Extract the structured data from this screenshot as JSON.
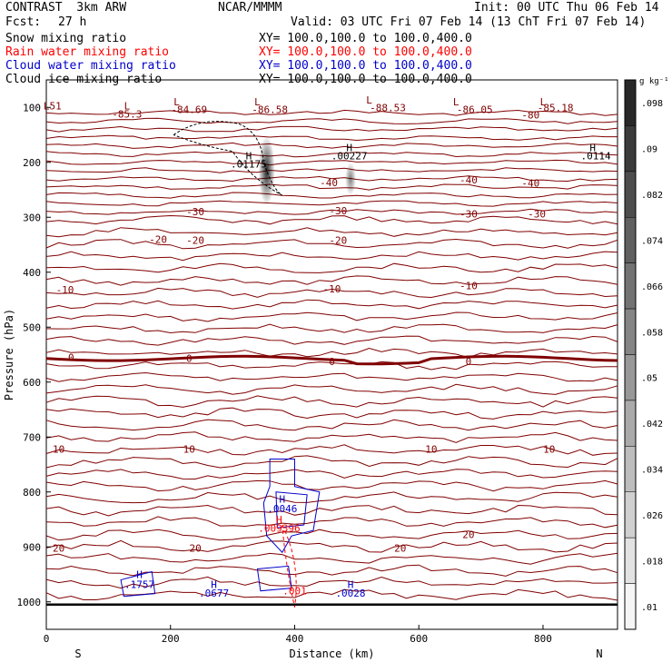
{
  "header": {
    "model": "CONTRAST  3km ARW",
    "center": "NCAR/MMMM",
    "init": "Init: 00 UTC Thu 06 Feb 14",
    "fcst_label": "Fcst:",
    "fcst_value": "27 h",
    "valid": "Valid: 03 UTC Fri 07 Feb 14 (13 ChT Fri 07 Feb 14)"
  },
  "fields": [
    {
      "name": "Snow mixing ratio",
      "xy": "XY= 100.0,100.0 to 100.0,400.0",
      "color": "#000000"
    },
    {
      "name": "Rain water mixing ratio",
      "xy": "XY= 100.0,100.0 to 100.0,400.0",
      "color": "#ff0000"
    },
    {
      "name": "Cloud water mixing ratio",
      "xy": "XY= 100.0,100.0 to 100.0,400.0",
      "color": "#0000cc"
    },
    {
      "name": "Cloud ice mixing ratio",
      "xy": "XY= 100.0,100.0 to 100.0,400.0",
      "color": "#000000"
    }
  ],
  "chart_data": {
    "type": "contour",
    "xlabel": "Distance (km)",
    "ylabel": "Pressure (hPa)",
    "xlim": [
      0,
      920
    ],
    "ylim": [
      1050,
      50
    ],
    "xticks": [
      0,
      200,
      400,
      600,
      800
    ],
    "yticks": [
      100,
      200,
      300,
      400,
      500,
      600,
      700,
      800,
      900,
      1000
    ],
    "endpoint_left": "S",
    "endpoint_right": "N",
    "colorbar": {
      "unit": "g kg⁻¹",
      "ticks": [
        ".098",
        ".09",
        ".082",
        ".074",
        ".066",
        ".058",
        ".05",
        ".042",
        ".034",
        ".026",
        ".018",
        ".01"
      ]
    },
    "temperature_labels": [
      {
        "text": "L51",
        "x": 10,
        "p": 97
      },
      {
        "text": "-85.3",
        "x": 130,
        "p": 112
      },
      {
        "text": "-84.69",
        "x": 230,
        "p": 104
      },
      {
        "text": "-86.58",
        "x": 360,
        "p": 104
      },
      {
        "text": "-88.53",
        "x": 550,
        "p": 100
      },
      {
        "text": "-86.05",
        "x": 690,
        "p": 104
      },
      {
        "text": "-80",
        "x": 780,
        "p": 114
      },
      {
        "text": "-85.18",
        "x": 820,
        "p": 100
      },
      {
        "text": "-40",
        "x": 455,
        "p": 237
      },
      {
        "text": "-40",
        "x": 680,
        "p": 232
      },
      {
        "text": "-40",
        "x": 780,
        "p": 238
      },
      {
        "text": "-30",
        "x": 240,
        "p": 290
      },
      {
        "text": "-30",
        "x": 470,
        "p": 288
      },
      {
        "text": "-30",
        "x": 680,
        "p": 294
      },
      {
        "text": "-30",
        "x": 790,
        "p": 294
      },
      {
        "text": "-20",
        "x": 180,
        "p": 340
      },
      {
        "text": "-20",
        "x": 240,
        "p": 342
      },
      {
        "text": "-20",
        "x": 470,
        "p": 342
      },
      {
        "text": "-10",
        "x": 30,
        "p": 432
      },
      {
        "text": "-10",
        "x": 460,
        "p": 430
      },
      {
        "text": "-10",
        "x": 680,
        "p": 424
      },
      {
        "text": "0",
        "x": 40,
        "p": 555
      },
      {
        "text": "0",
        "x": 230,
        "p": 557
      },
      {
        "text": "0",
        "x": 460,
        "p": 562
      },
      {
        "text": "0",
        "x": 680,
        "p": 562
      },
      {
        "text": "10",
        "x": 20,
        "p": 722
      },
      {
        "text": "10",
        "x": 230,
        "p": 722
      },
      {
        "text": "10",
        "x": 620,
        "p": 722
      },
      {
        "text": "10",
        "x": 810,
        "p": 722
      },
      {
        "text": "20",
        "x": 20,
        "p": 902
      },
      {
        "text": "20",
        "x": 240,
        "p": 902
      },
      {
        "text": "20",
        "x": 570,
        "p": 902
      },
      {
        "text": "20",
        "x": 680,
        "p": 877
      }
    ],
    "extrema": [
      {
        "text": "L",
        "x": 130,
        "p": 97,
        "color": "#800000"
      },
      {
        "text": "L",
        "x": 210,
        "p": 90,
        "color": "#800000"
      },
      {
        "text": "L",
        "x": 340,
        "p": 90,
        "color": "#800000"
      },
      {
        "text": "L",
        "x": 520,
        "p": 86,
        "color": "#800000"
      },
      {
        "text": "L",
        "x": 660,
        "p": 90,
        "color": "#800000"
      },
      {
        "text": "L",
        "x": 800,
        "p": 90,
        "color": "#800000"
      },
      {
        "text": "H",
        "x": 326,
        "p": 188,
        "color": "#000000"
      },
      {
        "text": ".01175",
        "x": 326,
        "p": 203,
        "color": "#000000"
      },
      {
        "text": "H",
        "x": 488,
        "p": 173,
        "color": "#000000"
      },
      {
        "text": ".00227",
        "x": 488,
        "p": 188,
        "color": "#000000"
      },
      {
        "text": "H",
        "x": 880,
        "p": 173,
        "color": "#000000"
      },
      {
        "text": ".0114",
        "x": 885,
        "p": 188,
        "color": "#000000"
      },
      {
        "text": "H",
        "x": 380,
        "p": 813,
        "color": "#0000cc"
      },
      {
        "text": ".0046",
        "x": 380,
        "p": 830,
        "color": "#0000cc"
      },
      {
        "text": "H",
        "x": 375,
        "p": 850,
        "color": "#ff0000"
      },
      {
        "text": ".009396",
        "x": 375,
        "p": 866,
        "color": "#ff0000"
      },
      {
        "text": "H",
        "x": 150,
        "p": 950,
        "color": "#0000cc"
      },
      {
        "text": ".1757",
        "x": 150,
        "p": 968,
        "color": "#0000cc"
      },
      {
        "text": "H",
        "x": 270,
        "p": 968,
        "color": "#0000cc"
      },
      {
        "text": ".0677",
        "x": 270,
        "p": 984,
        "color": "#0000cc"
      },
      {
        "text": ".001",
        "x": 400,
        "p": 980,
        "color": "#ff0000"
      },
      {
        "text": "H",
        "x": 490,
        "p": 968,
        "color": "#0000cc"
      },
      {
        "text": ".0028",
        "x": 490,
        "p": 984,
        "color": "#0000cc"
      }
    ]
  }
}
